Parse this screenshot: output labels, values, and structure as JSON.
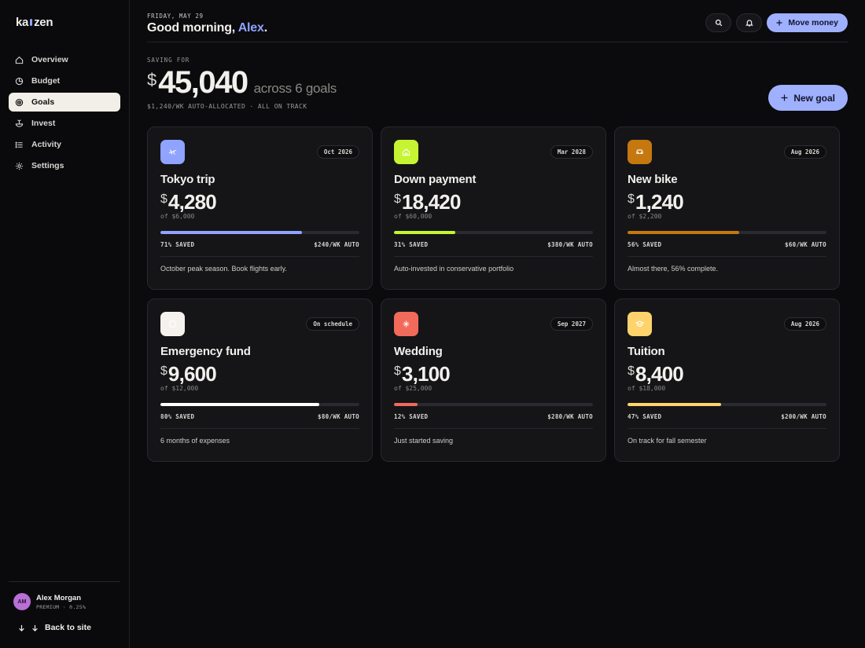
{
  "sidebar": {
    "logo_left": "ka",
    "logo_right": "zen",
    "items": [
      {
        "label": "Overview",
        "icon": "home-icon"
      },
      {
        "label": "Budget",
        "icon": "pie-icon"
      },
      {
        "label": "Goals",
        "icon": "target-icon",
        "active": true
      },
      {
        "label": "Invest",
        "icon": "sprout-icon"
      },
      {
        "label": "Activity",
        "icon": "list-icon"
      },
      {
        "label": "Settings",
        "icon": "gear-icon"
      }
    ],
    "user": {
      "initials": "AM",
      "name": "Alex Morgan",
      "plan": "PREMIUM · 0.25%"
    },
    "back_label": "Back to site"
  },
  "header": {
    "date": "FRIDAY, MAY 29",
    "greeting_prefix": "Good morning, ",
    "greeting_name": "Alex",
    "greeting_suffix": ".",
    "move_money_label": "Move money"
  },
  "hero": {
    "eyebrow": "SAVING FOR",
    "currency": "$",
    "total": "45,040",
    "across": "across 6 goals",
    "sub": "$1,240/WK AUTO-ALLOCATED · ALL ON TRACK",
    "new_goal_label": "New goal"
  },
  "goals": [
    {
      "name": "Tokyo trip",
      "date": "Oct 2026",
      "currency": "$",
      "amount": "4,280",
      "of": "of $6,000",
      "progress": 0.71,
      "saved": "71% SAVED",
      "auto": "$240/WK AUTO",
      "note": "October peak season. Book flights early.",
      "color": "#8fa3ff",
      "icon": "plane-icon",
      "icon_bg": "#8fa3ff",
      "icon_fg": "#ffffff"
    },
    {
      "name": "Down payment",
      "date": "Mar 2028",
      "currency": "$",
      "amount": "18,420",
      "of": "of $60,000",
      "progress": 0.31,
      "saved": "31% SAVED",
      "auto": "$380/WK AUTO",
      "note": "Auto-invested in conservative portfolio",
      "color": "#c6f432",
      "icon": "house-icon",
      "icon_bg": "#c6f432",
      "icon_fg": "#ffffff"
    },
    {
      "name": "New bike",
      "date": "Aug 2026",
      "currency": "$",
      "amount": "1,240",
      "of": "of $2,200",
      "progress": 0.56,
      "saved": "56% SAVED",
      "auto": "$60/WK AUTO",
      "note": "Almost there, 56% complete.",
      "color": "#c5780f",
      "icon": "car-icon",
      "icon_bg": "#c5780f",
      "icon_fg": "#ffffff"
    },
    {
      "name": "Emergency fund",
      "date": "On schedule",
      "currency": "$",
      "amount": "9,600",
      "of": "of $12,000",
      "progress": 0.8,
      "saved": "80% SAVED",
      "auto": "$80/WK AUTO",
      "note": "6 months of expenses",
      "color": "#ffffff",
      "icon": "shield-icon",
      "icon_bg": "#f5f2ee",
      "icon_fg": "#ffffff"
    },
    {
      "name": "Wedding",
      "date": "Sep 2027",
      "currency": "$",
      "amount": "3,100",
      "of": "of $25,000",
      "progress": 0.12,
      "saved": "12% SAVED",
      "auto": "$280/WK AUTO",
      "note": "Just started saving",
      "color": "#f26a5a",
      "icon": "sparkle-icon",
      "icon_bg": "#f26a5a",
      "icon_fg": "#ffffff"
    },
    {
      "name": "Tuition",
      "date": "Aug 2026",
      "currency": "$",
      "amount": "8,400",
      "of": "of $18,000",
      "progress": 0.47,
      "saved": "47% SAVED",
      "auto": "$200/WK AUTO",
      "note": "On track for fall semester",
      "color": "#ffd36b",
      "icon": "graduation-cap-icon",
      "icon_bg": "#ffd36b",
      "icon_fg": "#ffffff"
    }
  ]
}
